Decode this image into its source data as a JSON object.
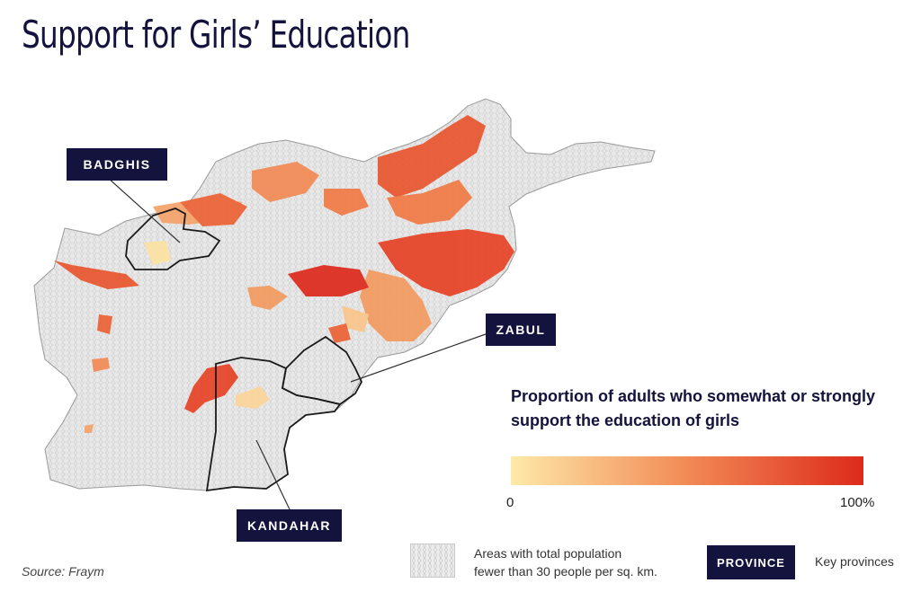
{
  "title": "Support for Girls’ Education",
  "provinces": {
    "badghis": "BADGHIS",
    "zabul": "ZABUL",
    "kandahar": "KANDAHAR"
  },
  "legend": {
    "title": "Proportion of adults who somewhat or strongly support the education of girls",
    "min_label": "0",
    "max_label": "100%",
    "color_low": "#fde9a9",
    "color_mid": "#f28a55",
    "color_high": "#dd2a1b"
  },
  "key": {
    "sparse_text_line1": "Areas with total population",
    "sparse_text_line2": "fewer than 30 people per sq. km.",
    "province_box": "PROVINCE",
    "province_text": "Key provinces"
  },
  "source": "Source: Fraym",
  "colors": {
    "title": "#14133d",
    "map_base": "#e6e6e6",
    "province_label_bg": "#14133d"
  }
}
